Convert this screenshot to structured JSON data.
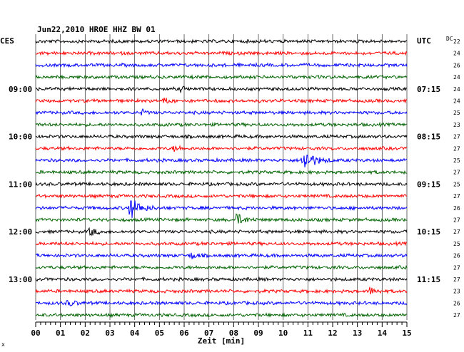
{
  "chart_data": {
    "type": "line",
    "title": "Jun22,2010  HROE HHZ BW 01",
    "left_timezone": "CES",
    "right_timezone": "UTC",
    "dc_header": "DC",
    "xlabel": "Zeit [min]",
    "x_ticks": [
      "00",
      "01",
      "02",
      "03",
      "04",
      "05",
      "06",
      "07",
      "08",
      "09",
      "10",
      "11",
      "12",
      "13",
      "14",
      "15"
    ],
    "xlim": [
      0,
      15
    ],
    "grid": true,
    "trace_colors": [
      "#000000",
      "#ff0000",
      "#0000ff",
      "#006400"
    ],
    "left_time_labels": [
      {
        "row": 4,
        "label": "09:00"
      },
      {
        "row": 8,
        "label": "10:00"
      },
      {
        "row": 12,
        "label": "11:00"
      },
      {
        "row": 16,
        "label": "12:00"
      },
      {
        "row": 20,
        "label": "13:00"
      }
    ],
    "right_time_labels": [
      {
        "row": 4,
        "label": "07:15"
      },
      {
        "row": 8,
        "label": "08:15"
      },
      {
        "row": 12,
        "label": "09:15"
      },
      {
        "row": 16,
        "label": "10:15"
      },
      {
        "row": 20,
        "label": "11:15"
      }
    ],
    "dc_values": [
      "22",
      "24",
      "26",
      "24",
      "24",
      "24",
      "25",
      "23",
      "27",
      "27",
      "25",
      "27",
      "25",
      "27",
      "26",
      "27",
      "27",
      "25",
      "26",
      "27",
      "27",
      "23",
      "26",
      "27"
    ],
    "events": [
      {
        "row": 10,
        "minute": 10.8,
        "amplitude": 16,
        "duration": 1.2
      },
      {
        "row": 14,
        "minute": 3.8,
        "amplitude": 16,
        "duration": 1.1
      },
      {
        "row": 15,
        "minute": 8.1,
        "amplitude": 9,
        "duration": 0.9
      },
      {
        "row": 16,
        "minute": 2.2,
        "amplitude": 7,
        "duration": 0.6
      },
      {
        "row": 18,
        "minute": 6.3,
        "amplitude": 5,
        "duration": 0.5
      },
      {
        "row": 5,
        "minute": 5.2,
        "amplitude": 4,
        "duration": 0.5
      },
      {
        "row": 9,
        "minute": 5.6,
        "amplitude": 4,
        "duration": 0.6
      },
      {
        "row": 21,
        "minute": 13.5,
        "amplitude": 5,
        "duration": 0.7
      },
      {
        "row": 22,
        "minute": 1.3,
        "amplitude": 4,
        "duration": 0.8
      },
      {
        "row": 4,
        "minute": 5.9,
        "amplitude": 5,
        "duration": 0.3
      },
      {
        "row": 6,
        "minute": 4.3,
        "amplitude": 4,
        "duration": 0.4
      }
    ],
    "corner_mark": "x"
  }
}
